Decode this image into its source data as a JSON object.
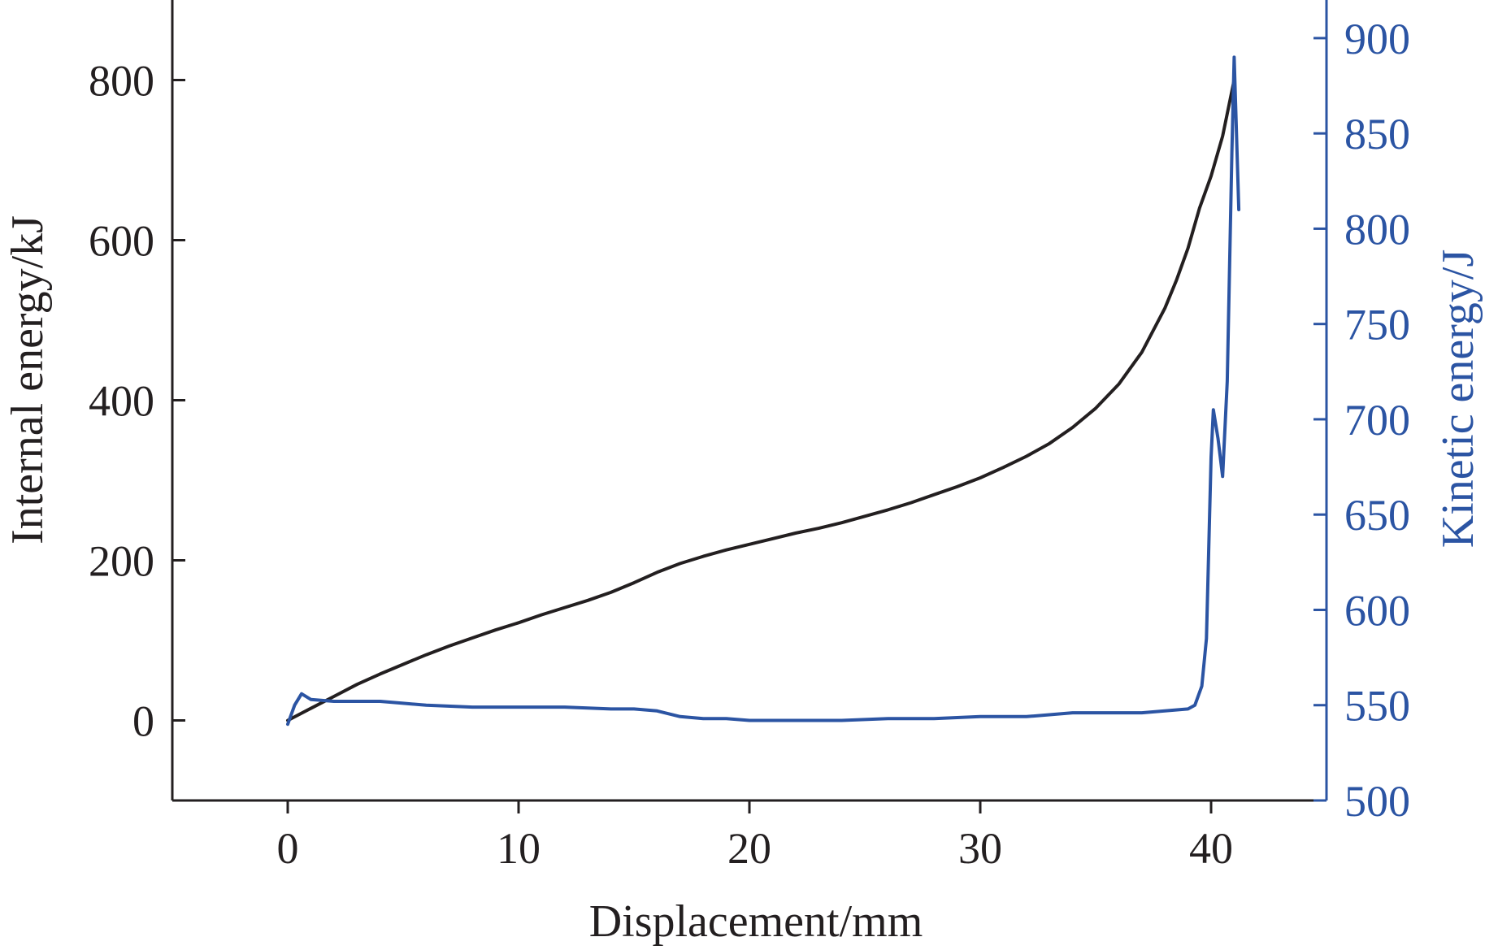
{
  "chart_data": {
    "type": "line",
    "xlabel": "Displacement/mm",
    "ylabel_left": "Internal energy/kJ",
    "ylabel_right": "Kinetic energy/J",
    "xlim": [
      -5,
      45
    ],
    "ylim_left": [
      -100,
      900
    ],
    "ylim_right": [
      500,
      920
    ],
    "x_ticks": [
      0,
      10,
      20,
      30,
      40
    ],
    "y_ticks_left": [
      0,
      200,
      400,
      600,
      800
    ],
    "y_ticks_right": [
      500,
      550,
      600,
      650,
      700,
      750,
      800,
      850,
      900
    ],
    "grid": false,
    "colors": {
      "internal": "#231f20",
      "kinetic": "#2b54a3"
    },
    "series": [
      {
        "axis": "left",
        "color": "#231f20",
        "points": [
          [
            0,
            0
          ],
          [
            1,
            15
          ],
          [
            2,
            30
          ],
          [
            3,
            45
          ],
          [
            4,
            58
          ],
          [
            5,
            70
          ],
          [
            6,
            82
          ],
          [
            7,
            93
          ],
          [
            8,
            103
          ],
          [
            9,
            113
          ],
          [
            10,
            122
          ],
          [
            11,
            132
          ],
          [
            12,
            141
          ],
          [
            13,
            150
          ],
          [
            14,
            160
          ],
          [
            15,
            172
          ],
          [
            16,
            185
          ],
          [
            17,
            196
          ],
          [
            18,
            205
          ],
          [
            19,
            213
          ],
          [
            20,
            220
          ],
          [
            21,
            227
          ],
          [
            22,
            234
          ],
          [
            23,
            240
          ],
          [
            24,
            247
          ],
          [
            25,
            255
          ],
          [
            26,
            263
          ],
          [
            27,
            272
          ],
          [
            28,
            282
          ],
          [
            29,
            292
          ],
          [
            30,
            303
          ],
          [
            31,
            316
          ],
          [
            32,
            330
          ],
          [
            33,
            346
          ],
          [
            34,
            366
          ],
          [
            35,
            390
          ],
          [
            36,
            420
          ],
          [
            37,
            460
          ],
          [
            38,
            515
          ],
          [
            38.5,
            550
          ],
          [
            39,
            590
          ],
          [
            39.5,
            640
          ],
          [
            40,
            680
          ],
          [
            40.5,
            730
          ],
          [
            41,
            800
          ]
        ]
      },
      {
        "axis": "right",
        "color": "#2b54a3",
        "points": [
          [
            0,
            540
          ],
          [
            0.3,
            550
          ],
          [
            0.6,
            556
          ],
          [
            1.0,
            553
          ],
          [
            2,
            552
          ],
          [
            3,
            552
          ],
          [
            4,
            552
          ],
          [
            5,
            551
          ],
          [
            6,
            550
          ],
          [
            8,
            549
          ],
          [
            10,
            549
          ],
          [
            12,
            549
          ],
          [
            14,
            548
          ],
          [
            15,
            548
          ],
          [
            16,
            547
          ],
          [
            17,
            544
          ],
          [
            18,
            543
          ],
          [
            19,
            543
          ],
          [
            20,
            542
          ],
          [
            21,
            542
          ],
          [
            22,
            542
          ],
          [
            23,
            542
          ],
          [
            24,
            542
          ],
          [
            26,
            543
          ],
          [
            28,
            543
          ],
          [
            30,
            544
          ],
          [
            32,
            544
          ],
          [
            33,
            545
          ],
          [
            34,
            546
          ],
          [
            35,
            546
          ],
          [
            36,
            546
          ],
          [
            37,
            546
          ],
          [
            38,
            547
          ],
          [
            39,
            548
          ],
          [
            39.3,
            550
          ],
          [
            39.6,
            560
          ],
          [
            39.8,
            585
          ],
          [
            40,
            680
          ],
          [
            40.1,
            705
          ],
          [
            40.3,
            690
          ],
          [
            40.5,
            670
          ],
          [
            40.7,
            720
          ],
          [
            40.9,
            840
          ],
          [
            41.0,
            890
          ],
          [
            41.2,
            810
          ]
        ]
      }
    ]
  }
}
